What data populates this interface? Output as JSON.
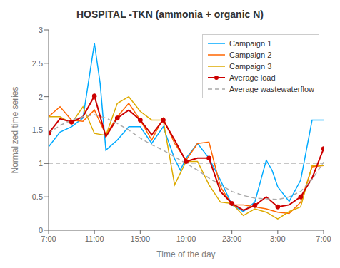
{
  "chart_data": {
    "type": "line",
    "title": "HOSPITAL -TKN (ammonia + organic N)",
    "x_label": "Time of the day",
    "y_label": "Normalized time series",
    "xlim": [
      0,
      24
    ],
    "ylim": [
      0,
      3
    ],
    "yticks": [
      0,
      0.5,
      1,
      1.5,
      2,
      2.5,
      3
    ],
    "xticks": [
      {
        "value": 0,
        "label": "7:00"
      },
      {
        "value": 4,
        "label": "11:00"
      },
      {
        "value": 8,
        "label": "15:00"
      },
      {
        "value": 12,
        "label": "19:00"
      },
      {
        "value": 16,
        "label": "23:00"
      },
      {
        "value": 20,
        "label": "3:00"
      },
      {
        "value": 24,
        "label": "7:00"
      }
    ],
    "grid": false,
    "legend": "upper right",
    "reference_line": {
      "y": 1.0,
      "color": "#BBBBBB",
      "line_style": "dashed"
    },
    "series": [
      {
        "name": "Campaign 1",
        "color": "#00AAFF",
        "line_style": "solid",
        "x": [
          0,
          1,
          2,
          3,
          4,
          4.5,
          5,
          6,
          7,
          8,
          9,
          10,
          11,
          11.5,
          12,
          13,
          14,
          15,
          16,
          17,
          18,
          19,
          19.5,
          20,
          21,
          22,
          23,
          24
        ],
        "values": [
          1.25,
          1.47,
          1.55,
          1.68,
          2.8,
          2.2,
          1.2,
          1.35,
          1.55,
          1.55,
          1.3,
          1.55,
          1.07,
          0.9,
          1.08,
          1.3,
          1.08,
          0.75,
          0.38,
          0.28,
          0.42,
          1.05,
          0.9,
          0.65,
          0.43,
          0.75,
          1.65,
          1.65
        ]
      },
      {
        "name": "Campaign 2",
        "color": "#FF6600",
        "line_style": "solid",
        "x": [
          0,
          1,
          2,
          3,
          4,
          5,
          6,
          7,
          8,
          9,
          10,
          11,
          12,
          13,
          14,
          15,
          16,
          17,
          18,
          19,
          20,
          21,
          22,
          23,
          24
        ],
        "values": [
          1.7,
          1.85,
          1.65,
          1.63,
          1.8,
          1.43,
          1.7,
          1.9,
          1.65,
          1.35,
          1.68,
          1.3,
          1.05,
          1.3,
          1.32,
          0.65,
          0.38,
          0.38,
          0.35,
          0.32,
          0.27,
          0.25,
          0.42,
          0.95,
          0.97
        ]
      },
      {
        "name": "Campaign 3",
        "color": "#DDAA00",
        "line_style": "solid",
        "x": [
          0,
          1,
          2,
          3,
          4,
          5,
          6,
          7,
          8,
          9,
          10,
          11,
          12,
          13,
          14,
          15,
          16,
          17,
          18,
          19,
          20,
          21,
          22,
          23,
          24
        ],
        "values": [
          1.7,
          1.7,
          1.6,
          1.85,
          1.45,
          1.42,
          1.9,
          2.0,
          1.78,
          1.65,
          1.65,
          0.68,
          1.03,
          1.03,
          0.68,
          0.42,
          0.4,
          0.22,
          0.32,
          0.27,
          0.17,
          0.28,
          0.35,
          0.97,
          0.97
        ]
      },
      {
        "name": "Average load",
        "color": "#CC0000",
        "line_style": "solid",
        "marker": "circle",
        "x": [
          0,
          1,
          2,
          3,
          4,
          5,
          6,
          7,
          8,
          9,
          10,
          11,
          12,
          13,
          14,
          15,
          16,
          17,
          18,
          19,
          20,
          21,
          22,
          23,
          24
        ],
        "values": [
          1.45,
          1.67,
          1.62,
          1.7,
          2.01,
          1.4,
          1.68,
          1.8,
          1.65,
          1.43,
          1.65,
          1.35,
          1.03,
          1.08,
          1.08,
          0.58,
          0.4,
          0.3,
          0.37,
          0.5,
          0.35,
          0.38,
          0.5,
          0.78,
          1.22
        ],
        "marker_x": [
          0,
          2,
          4,
          6,
          8,
          10,
          12,
          14,
          16,
          18,
          20,
          22,
          24
        ],
        "marker_values": [
          1.45,
          1.62,
          2.01,
          1.68,
          1.65,
          1.65,
          1.03,
          1.08,
          0.4,
          0.37,
          0.35,
          0.5,
          1.22
        ]
      },
      {
        "name": "Average wastewaterflow",
        "color": "#AAAAAA",
        "line_style": "dashed",
        "x": [
          0,
          1,
          2,
          3,
          4,
          5,
          6,
          7,
          8,
          9,
          10,
          11,
          12,
          13,
          14,
          15,
          16,
          17,
          18,
          19,
          20,
          21,
          22,
          23,
          24
        ],
        "values": [
          1.45,
          1.57,
          1.65,
          1.7,
          1.73,
          1.68,
          1.6,
          1.5,
          1.38,
          1.28,
          1.2,
          1.1,
          1.0,
          0.9,
          0.78,
          0.68,
          0.58,
          0.52,
          0.48,
          0.47,
          0.46,
          0.5,
          0.58,
          0.76,
          1.02
        ]
      }
    ]
  }
}
